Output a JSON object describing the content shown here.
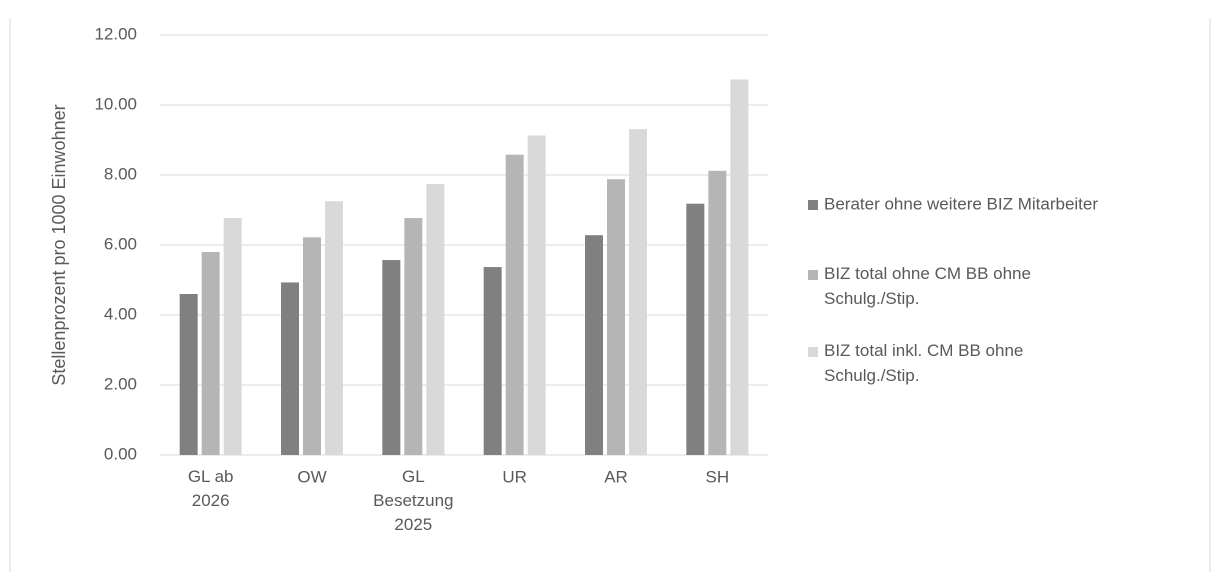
{
  "chart_data": {
    "type": "bar",
    "y_label": "Stellenprozent pro 1000 Einwohner",
    "categories": [
      "GL ab\n2026",
      "OW",
      "GL\nBesetzung\n2025",
      "UR",
      "AR",
      "SH"
    ],
    "series": [
      {
        "name": "Berater ohne weitere BIZ Mitarbeiter",
        "color": "#808080",
        "values": [
          4.6,
          4.93,
          5.57,
          5.37,
          6.28,
          7.18
        ]
      },
      {
        "name": "BIZ total ohne CM BB ohne\nSchulg./Stip.",
        "color": "#b5b5b5",
        "values": [
          5.8,
          6.22,
          6.77,
          8.58,
          7.88,
          8.12
        ]
      },
      {
        "name": "BIZ total inkl. CM BB ohne\nSchulg./Stip.",
        "color": "#d9d9d9",
        "values": [
          6.77,
          7.25,
          7.74,
          9.13,
          9.31,
          10.73
        ]
      }
    ],
    "ylim": [
      0,
      12
    ],
    "yticks": [
      {
        "value": 0,
        "label": "0.00"
      },
      {
        "value": 2,
        "label": "2.00"
      },
      {
        "value": 4,
        "label": "4.00"
      },
      {
        "value": 6,
        "label": "6.00"
      },
      {
        "value": 8,
        "label": "8.00"
      },
      {
        "value": 10,
        "label": "10.00"
      },
      {
        "value": 12,
        "label": "12.00"
      }
    ],
    "grid": true,
    "legend": "right"
  }
}
